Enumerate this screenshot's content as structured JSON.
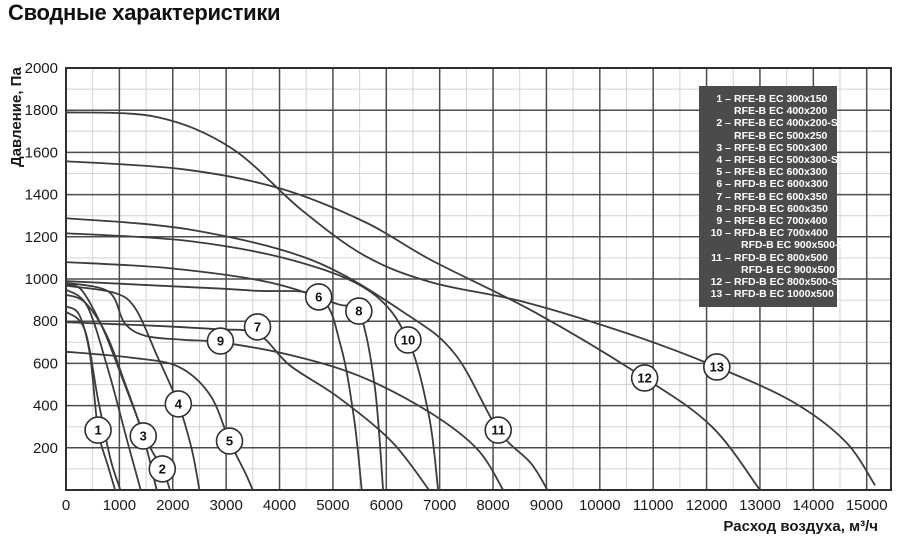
{
  "title": "Сводные характеристики",
  "chart_data": {
    "type": "line",
    "title": "Сводные характеристики",
    "xlabel": "Расход воздуха, м³/ч",
    "ylabel": "Давление, Па",
    "xlim": [
      0,
      15455
    ],
    "ylim": [
      0,
      2000
    ],
    "x_tick_step": 1000,
    "x_tick_max": 15000,
    "y_tick_step": 200,
    "x_minor_step": 500,
    "y_minor_step": 100,
    "grid": true,
    "legend_position": "top-right",
    "series": [
      {
        "id": "1",
        "name": "RFE-B EC 300x150 / RFE-B EC 400x200",
        "points": [
          [
            0,
            870
          ],
          [
            250,
            830
          ],
          [
            450,
            640
          ],
          [
            601,
            284
          ],
          [
            780,
            120
          ],
          [
            920,
            0
          ]
        ]
      },
      {
        "id": "1b",
        "name": "RFE-B EC 400x200 (paired strand)",
        "points": [
          [
            0,
            845
          ],
          [
            350,
            760
          ],
          [
            600,
            430
          ],
          [
            830,
            150
          ],
          [
            1020,
            0
          ]
        ]
      },
      {
        "id": "2",
        "name": "RFE-B EC 400x200-S / RFE-B EC 500x250",
        "points": [
          [
            0,
            975
          ],
          [
            300,
            945
          ],
          [
            700,
            760
          ],
          [
            1100,
            500
          ],
          [
            1500,
            240
          ],
          [
            1804,
            100
          ],
          [
            1950,
            0
          ]
        ]
      },
      {
        "id": "2b",
        "name": "RFE-B EC 500x250 (paired strand)",
        "points": [
          [
            0,
            950
          ],
          [
            400,
            870
          ],
          [
            800,
            560
          ],
          [
            1150,
            230
          ],
          [
            1400,
            0
          ]
        ]
      },
      {
        "id": "3",
        "name": "RFE-B EC 500x300",
        "points": [
          [
            0,
            925
          ],
          [
            350,
            890
          ],
          [
            750,
            740
          ],
          [
            1100,
            510
          ],
          [
            1447,
            256
          ],
          [
            1700,
            0
          ]
        ]
      },
      {
        "id": "4",
        "name": "RFE-B EC 500x300-S",
        "points": [
          [
            0,
            968
          ],
          [
            900,
            935
          ],
          [
            1300,
            860
          ],
          [
            1700,
            640
          ],
          [
            2104,
            408
          ],
          [
            2350,
            200
          ],
          [
            2500,
            0
          ]
        ]
      },
      {
        "id": "5",
        "name": "RFE-B EC 600x300",
        "points": [
          [
            0,
            655
          ],
          [
            1200,
            628
          ],
          [
            2100,
            585
          ],
          [
            2700,
            450
          ],
          [
            3063,
            232
          ],
          [
            3360,
            80
          ],
          [
            3500,
            0
          ]
        ]
      },
      {
        "id": "6",
        "name": "RFD-B EC 600x300",
        "points": [
          [
            0,
            990
          ],
          [
            1800,
            968
          ],
          [
            3500,
            945
          ],
          [
            4734,
            915
          ],
          [
            5150,
            680
          ],
          [
            5400,
            330
          ],
          [
            5540,
            0
          ]
        ]
      },
      {
        "id": "7",
        "name": "RFE-B EC 600x350",
        "points": [
          [
            0,
            795
          ],
          [
            1500,
            780
          ],
          [
            2800,
            762
          ],
          [
            3588,
            740
          ],
          [
            4196,
            590
          ],
          [
            5100,
            440
          ],
          [
            6100,
            230
          ],
          [
            6800,
            0
          ]
        ]
      },
      {
        "id": "8",
        "name": "RFD-B EC 600x350",
        "points": [
          [
            0,
            1080
          ],
          [
            1900,
            1052
          ],
          [
            3800,
            985
          ],
          [
            5100,
            880
          ],
          [
            5486,
            848
          ],
          [
            5780,
            500
          ],
          [
            5940,
            0
          ]
        ]
      },
      {
        "id": "9",
        "name": "RFE-B EC 700x400",
        "points": [
          [
            0,
            982
          ],
          [
            800,
            940
          ],
          [
            1100,
            790
          ],
          [
            1500,
            730
          ],
          [
            2200,
            712
          ],
          [
            2893,
            700
          ],
          [
            4196,
            640
          ],
          [
            5500,
            540
          ],
          [
            6800,
            370
          ],
          [
            7700,
            195
          ],
          [
            8190,
            0
          ]
        ]
      },
      {
        "id": "10",
        "name": "RFD-B EC 700x400 / RFD-B EC 900x500-S",
        "points": [
          [
            0,
            1217
          ],
          [
            2300,
            1180
          ],
          [
            4300,
            1085
          ],
          [
            5700,
            940
          ],
          [
            6406,
            711
          ],
          [
            6800,
            350
          ],
          [
            6970,
            0
          ]
        ]
      },
      {
        "id": "11",
        "name": "RFD-B EC 800x500 / RFD-B EC 900x500",
        "points": [
          [
            0,
            1288
          ],
          [
            2300,
            1235
          ],
          [
            4600,
            1090
          ],
          [
            6400,
            830
          ],
          [
            7300,
            640
          ],
          [
            8097,
            284
          ],
          [
            8700,
            130
          ],
          [
            9020,
            0
          ]
        ]
      },
      {
        "id": "12",
        "name": "RFD-B EC 800x500-S",
        "points": [
          [
            0,
            1558
          ],
          [
            2200,
            1520
          ],
          [
            4000,
            1430
          ],
          [
            5600,
            1270
          ],
          [
            6838,
            1090
          ],
          [
            8800,
            840
          ],
          [
            10840,
            531
          ],
          [
            12100,
            300
          ],
          [
            13000,
            0
          ]
        ]
      },
      {
        "id": "13",
        "name": "RFD-B EC 1000x500",
        "points": [
          [
            0,
            1790
          ],
          [
            1700,
            1768
          ],
          [
            3100,
            1620
          ],
          [
            4400,
            1330
          ],
          [
            5600,
            1110
          ],
          [
            6838,
            985
          ],
          [
            8600,
            890
          ],
          [
            10600,
            735
          ],
          [
            12192,
            583
          ],
          [
            13600,
            420
          ],
          [
            14600,
            230
          ],
          [
            15150,
            25
          ]
        ]
      }
    ],
    "curve_number_badges": [
      {
        "n": "1",
        "x": 601,
        "y": 284
      },
      {
        "n": "2",
        "x": 1804,
        "y": 100
      },
      {
        "n": "3",
        "x": 1447,
        "y": 256
      },
      {
        "n": "4",
        "x": 2104,
        "y": 408
      },
      {
        "n": "5",
        "x": 3063,
        "y": 232
      },
      {
        "n": "6",
        "x": 4734,
        "y": 915
      },
      {
        "n": "7",
        "x": 3588,
        "y": 773
      },
      {
        "n": "8",
        "x": 5486,
        "y": 848
      },
      {
        "n": "9",
        "x": 2893,
        "y": 706
      },
      {
        "n": "10",
        "x": 6406,
        "y": 711
      },
      {
        "n": "11",
        "x": 8097,
        "y": 284
      },
      {
        "n": "12",
        "x": 10840,
        "y": 531
      },
      {
        "n": "13",
        "x": 12192,
        "y": 583
      }
    ],
    "legend": {
      "bg_color": "#4b4b4b",
      "text_color": "#ffffff",
      "entries": [
        {
          "num": "1",
          "name": "RFE-B EC 300x150",
          "indent": 1
        },
        {
          "num": "",
          "name": "RFE-B EC 400x200",
          "indent": 1
        },
        {
          "num": "2",
          "name": "RFE-B EC 400x200-S",
          "indent": 1
        },
        {
          "num": "",
          "name": "RFE-B EC 500x250",
          "indent": 1
        },
        {
          "num": "3",
          "name": "RFE-B EC 500x300",
          "indent": 1
        },
        {
          "num": "4",
          "name": "RFE-B EC 500x300-S",
          "indent": 1
        },
        {
          "num": "5",
          "name": "RFE-B EC 600x300",
          "indent": 1
        },
        {
          "num": "6",
          "name": "RFD-B EC 600x300",
          "indent": 1
        },
        {
          "num": "7",
          "name": "RFE-B EC 600x350",
          "indent": 1
        },
        {
          "num": "8",
          "name": "RFD-B EC 600x350",
          "indent": 1
        },
        {
          "num": "9",
          "name": "RFE-B EC 700x400",
          "indent": 1
        },
        {
          "num": "10",
          "name": "RFD-B EC 700x400",
          "indent": 1
        },
        {
          "num": "",
          "name": "RFD-B EC 900x500-S",
          "indent": 2
        },
        {
          "num": "11",
          "name": "RFD-B EC 800x500",
          "indent": 1
        },
        {
          "num": "",
          "name": "RFD-B EC 900x500",
          "indent": 2
        },
        {
          "num": "12",
          "name": "RFD-B EC 800x500-S",
          "indent": 1
        },
        {
          "num": "13",
          "name": "RFD-B EC 1000x500",
          "indent": 1
        }
      ]
    },
    "colors": {
      "curve": "#3c3c3c",
      "grid_major": "#4d4d4d",
      "grid_minor": "#d4d4d4",
      "border": "#2f2f2f",
      "tick_text": "#1a1a1a"
    }
  }
}
